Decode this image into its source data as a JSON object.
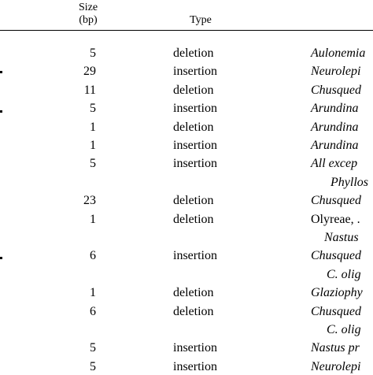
{
  "header": {
    "size_line1": "Size",
    "size_line2": "(bp)",
    "type": "Type"
  },
  "rows": [
    {
      "size": "5",
      "type": "deletion",
      "taxa": "Aulonemia"
    },
    {
      "size": "29",
      "type": "insertion",
      "taxa": "Neurolepi"
    },
    {
      "size": "11",
      "type": "deletion",
      "taxa": "Chusqued"
    },
    {
      "size": "5",
      "type": "insertion",
      "taxa": "Arundina"
    },
    {
      "size": "1",
      "type": "deletion",
      "taxa": "Arundina"
    },
    {
      "size": "1",
      "type": "insertion",
      "taxa": "Arundina"
    },
    {
      "size": "5",
      "type": "insertion",
      "taxa": "All excep"
    },
    {
      "size": "",
      "type": "",
      "taxa": "Phyllos"
    },
    {
      "size": "23",
      "type": "deletion",
      "taxa": "Chusqued"
    },
    {
      "size": "1",
      "type": "deletion",
      "taxa": "Olyreae, ."
    },
    {
      "size": "",
      "type": "",
      "taxa": "Nastus"
    },
    {
      "size": "6",
      "type": "insertion",
      "taxa": "Chusqued"
    },
    {
      "size": "",
      "type": "",
      "taxa": "C. olig"
    },
    {
      "size": "1",
      "type": "deletion",
      "taxa": "Glaziophy"
    },
    {
      "size": "6",
      "type": "deletion",
      "taxa": "Chusqued"
    },
    {
      "size": "",
      "type": "",
      "taxa": "C. olig"
    },
    {
      "size": "5",
      "type": "insertion",
      "taxa": "Nastus pr"
    },
    {
      "size": "5",
      "type": "insertion",
      "taxa": "Neurolepi"
    }
  ]
}
